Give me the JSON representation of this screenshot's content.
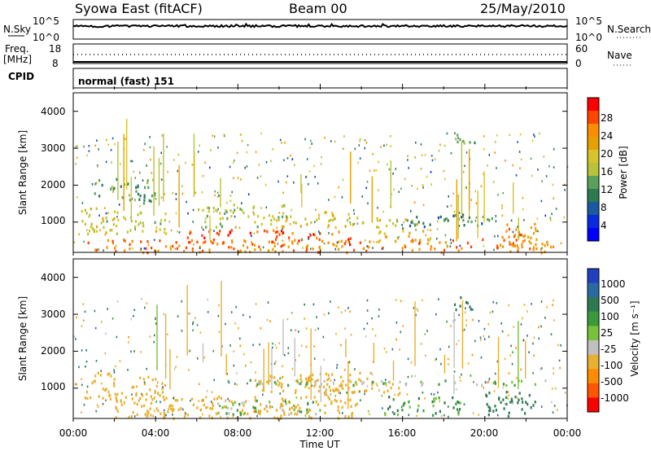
{
  "header": {
    "station": "Syowa East (fitACF)",
    "beam": "Beam 00",
    "date": "25/May/2010"
  },
  "nsky_panel": {
    "left_label": "N.Sky",
    "left_ticks": [
      "10^5",
      "10^0"
    ],
    "right_ticks": [
      "10^5",
      "10^0"
    ],
    "right_label": "N.Search"
  },
  "freq_panel": {
    "left_label_1": "Freq.",
    "left_label_2": "[MHz]",
    "left_ticks": [
      "18",
      "8"
    ],
    "right_ticks": [
      "60",
      "0"
    ],
    "right_label": "Nave"
  },
  "cpid_panel": {
    "label": "CPID",
    "text": "normal (fast) 151"
  },
  "power_panel": {
    "ylabel": "Slant Range [km]",
    "y_ticks": [
      "4000",
      "3000",
      "2000",
      "1000"
    ],
    "cbar_label": "Power [dB]",
    "cbar_ticks": [
      "28",
      "24",
      "20",
      "16",
      "12",
      "8",
      "4"
    ],
    "cbar_colors": [
      "#ff0000",
      "#ff4400",
      "#ff8c00",
      "#e8a000",
      "#d7c42b",
      "#b8c23a",
      "#5aa05a",
      "#2d7a50",
      "#1a5aa0",
      "#0a2ae0",
      "#0000ff"
    ]
  },
  "velocity_panel": {
    "ylabel": "Slant Range [km]",
    "y_ticks": [
      "4000",
      "3000",
      "2000",
      "1000"
    ],
    "cbar_label": "Velocity [m s⁻¹]",
    "cbar_ticks": [
      "1000",
      "500",
      "100",
      "25",
      "-25",
      "-100",
      "-500",
      "-1000"
    ],
    "cbar_colors": [
      "#2040c0",
      "#2a6aa0",
      "#2d7a50",
      "#3a9a3a",
      "#77c23a",
      "#c0c0c0",
      "#e8b030",
      "#ff8c00",
      "#ff5500",
      "#ff0000"
    ]
  },
  "x_axis": {
    "ticks": [
      "00:00",
      "04:00",
      "08:00",
      "12:00",
      "16:00",
      "20:00",
      "00:00"
    ],
    "label": "Time UT"
  },
  "chart_data": [
    {
      "type": "heatmap",
      "title": "Power",
      "xlabel": "Time UT",
      "ylabel": "Slant Range [km]",
      "xlim": [
        0,
        24
      ],
      "ylim": [
        180,
        4500
      ],
      "colorbar": {
        "label": "Power [dB]",
        "range": [
          0,
          32
        ],
        "ticks": [
          4,
          8,
          12,
          16,
          20,
          24,
          28
        ]
      },
      "regions": [
        {
          "t": [
            0.5,
            23.5
          ],
          "r": [
            200,
            560
          ],
          "value": 26
        },
        {
          "t": [
            5.5,
            13.5
          ],
          "r": [
            420,
            820
          ],
          "value": 28
        },
        {
          "t": [
            0.3,
            4.5
          ],
          "r": [
            700,
            1450
          ],
          "value": 18
        },
        {
          "t": [
            6.0,
            10.5
          ],
          "r": [
            850,
            1500
          ],
          "value": 16
        },
        {
          "t": [
            9.5,
            13.5
          ],
          "r": [
            900,
            1300
          ],
          "value": 20
        },
        {
          "t": [
            12.5,
            16.8
          ],
          "r": [
            850,
            1150
          ],
          "value": 18
        },
        {
          "t": [
            14.8,
            17.5
          ],
          "r": [
            500,
            800
          ],
          "value": 22
        },
        {
          "t": [
            20.5,
            22.5
          ],
          "r": [
            250,
            1000
          ],
          "value": 26
        },
        {
          "t": [
            16.0,
            20.5
          ],
          "r": [
            900,
            1250
          ],
          "value": 10
        },
        {
          "t": [
            1.0,
            4.0
          ],
          "r": [
            1500,
            2200
          ],
          "value": 12
        },
        {
          "t": [
            18.5,
            19.5
          ],
          "r": [
            3150,
            3500
          ],
          "value": 14
        }
      ]
    },
    {
      "type": "heatmap",
      "title": "Velocity",
      "xlabel": "Time UT",
      "ylabel": "Slant Range [km]",
      "xlim": [
        0,
        24
      ],
      "ylim": [
        180,
        4500
      ],
      "colorbar": {
        "label": "Velocity [m s⁻¹]",
        "ticks": [
          1000,
          500,
          100,
          25,
          -25,
          -100,
          -500,
          -1000
        ]
      },
      "regions": [
        {
          "t": [
            2.0,
            14.0
          ],
          "r": [
            200,
            800
          ],
          "value": -300
        },
        {
          "t": [
            7.0,
            12.0
          ],
          "r": [
            300,
            700
          ],
          "value": 10
        },
        {
          "t": [
            0.5,
            4.5
          ],
          "r": [
            700,
            1450
          ],
          "value": -200
        },
        {
          "t": [
            8.5,
            14.5
          ],
          "r": [
            900,
            1450
          ],
          "value": -250
        },
        {
          "t": [
            12.0,
            16.0
          ],
          "r": [
            850,
            1200
          ],
          "value": -150
        },
        {
          "t": [
            7.0,
            23.0
          ],
          "r": [
            1100,
            1250
          ],
          "value": 0
        },
        {
          "t": [
            15.0,
            19.0
          ],
          "r": [
            300,
            800
          ],
          "value": 80
        },
        {
          "t": [
            20.0,
            22.5
          ],
          "r": [
            250,
            950
          ],
          "value": 200
        },
        {
          "t": [
            18.5,
            19.5
          ],
          "r": [
            3150,
            3500
          ],
          "value": 300
        }
      ]
    }
  ]
}
